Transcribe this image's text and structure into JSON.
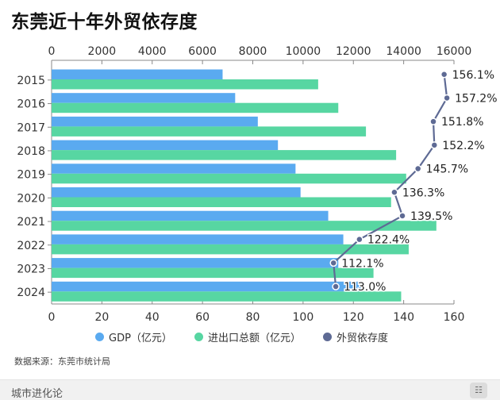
{
  "title": "东莞近十年外贸依存度",
  "source": "数据来源：东莞市统计局",
  "footer_brand": "城市进化论",
  "legend": [
    {
      "label": "GDP（亿元）",
      "color": "#5aaaf0"
    },
    {
      "label": "进出口总额（亿元）",
      "color": "#57d6a2"
    },
    {
      "label": "外贸依存度",
      "color": "#5e6a94"
    }
  ],
  "chart_data": {
    "type": "bar",
    "orientation": "horizontal",
    "title": "东莞近十年外贸依存度",
    "categories": [
      "2015",
      "2016",
      "2017",
      "2018",
      "2019",
      "2020",
      "2021",
      "2022",
      "2023",
      "2024"
    ],
    "series": [
      {
        "name": "GDP（亿元）",
        "axis": "top",
        "values": [
          6800,
          7300,
          8200,
          9000,
          9700,
          9900,
          11000,
          11600,
          11400,
          12300
        ],
        "color": "#5aaaf0"
      },
      {
        "name": "进出口总额（亿元）",
        "axis": "top",
        "values": [
          10600,
          11400,
          12500,
          13700,
          14100,
          13500,
          15300,
          14200,
          12800,
          13900
        ],
        "color": "#57d6a2"
      },
      {
        "name": "外贸依存度",
        "axis": "bottom",
        "type": "line",
        "values": [
          156.1,
          157.2,
          151.8,
          152.2,
          145.7,
          136.3,
          139.5,
          122.4,
          112.1,
          113.0
        ],
        "labels": [
          "156.1%",
          "157.2%",
          "151.8%",
          "152.2%",
          "145.7%",
          "136.3%",
          "139.5%",
          "122.4%",
          "112.1%",
          "113.0%"
        ],
        "color": "#5e6a94"
      }
    ],
    "x_top_range": [
      0,
      16000
    ],
    "x_top_ticks": [
      "0",
      "2000",
      "4000",
      "6000",
      "8000",
      "10000",
      "12000",
      "14000",
      "16000"
    ],
    "x_bottom_range": [
      0,
      160
    ],
    "x_bottom_ticks": [
      "0",
      "20",
      "40",
      "60",
      "80",
      "100",
      "120",
      "140",
      "160"
    ],
    "grid": false,
    "legend_position": "bottom"
  }
}
